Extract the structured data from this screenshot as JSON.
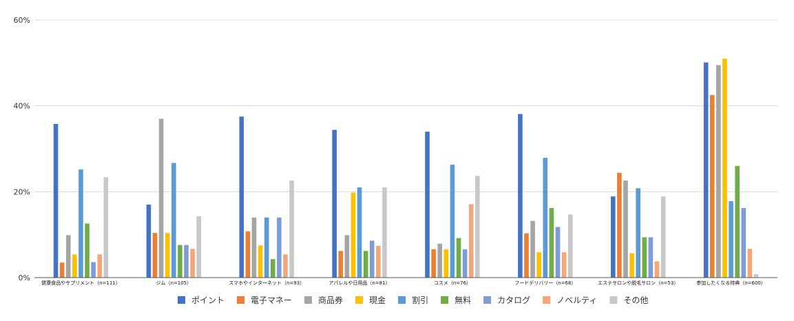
{
  "chart_data": {
    "type": "bar",
    "title": "",
    "xlabel": "",
    "ylabel": "",
    "ylim": [
      0,
      60
    ],
    "yticks": [
      "0%",
      "20%",
      "40%",
      "60%"
    ],
    "grid": true,
    "legend_position": "bottom",
    "categories": [
      "健康食品やサプリメント（n=111）",
      "ジム（n=105）",
      "スマホやインターネット（n=93）",
      "アパレルや日用品（n=81）",
      "コスメ（n=76）",
      "フードデリバリー（n=68）",
      "エステサロンや脱毛サロン（n=53）",
      "参加したくなる特典（n=600）"
    ],
    "series": [
      {
        "name": "ポイント",
        "color": "#4472C4",
        "values": [
          35.8,
          17.0,
          37.5,
          34.4,
          34.0,
          38.1,
          18.9,
          50.1
        ]
      },
      {
        "name": "電子マネー",
        "color": "#ED7D31",
        "values": [
          3.5,
          10.4,
          10.8,
          6.2,
          6.6,
          10.3,
          24.4,
          42.5
        ]
      },
      {
        "name": "商品券",
        "color": "#A5A5A5",
        "values": [
          9.9,
          37.0,
          14.0,
          9.9,
          7.9,
          13.2,
          22.6,
          49.5
        ]
      },
      {
        "name": "現金",
        "color": "#FFC000",
        "values": [
          5.4,
          10.4,
          7.5,
          19.8,
          6.6,
          5.9,
          5.7,
          51.0
        ]
      },
      {
        "name": "割引",
        "color": "#5B9BD5",
        "values": [
          25.2,
          26.7,
          14.0,
          21.0,
          26.3,
          27.9,
          20.8,
          17.8
        ]
      },
      {
        "name": "無料",
        "color": "#70AD47",
        "values": [
          12.6,
          7.6,
          4.3,
          6.2,
          9.2,
          16.2,
          9.4,
          26.0
        ]
      },
      {
        "name": "カタログ",
        "color": "#7E9CD6",
        "values": [
          3.6,
          7.6,
          14.0,
          8.6,
          6.6,
          11.8,
          9.4,
          16.2
        ]
      },
      {
        "name": "ノベルティ",
        "color": "#F4A67A",
        "values": [
          5.4,
          6.7,
          5.4,
          7.4,
          17.1,
          5.9,
          3.8,
          6.7
        ]
      },
      {
        "name": "その他",
        "color": "#C8C8C8",
        "values": [
          23.4,
          14.3,
          22.6,
          21.0,
          23.7,
          14.7,
          18.9,
          0.8
        ]
      }
    ]
  }
}
